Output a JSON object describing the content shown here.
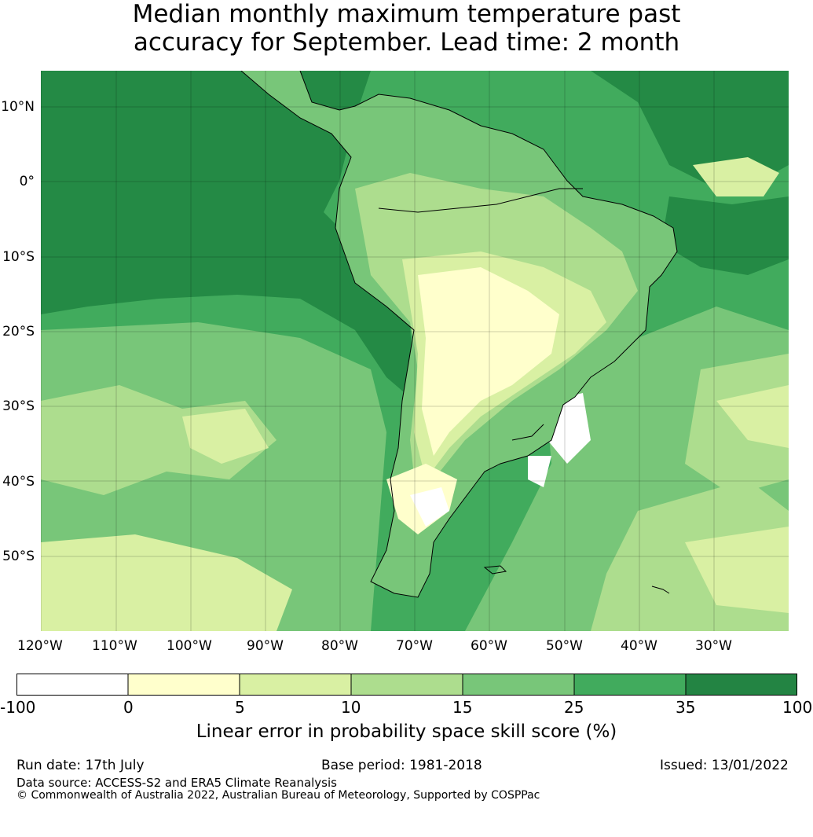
{
  "title": {
    "line1": "Median monthly maximum temperature past",
    "line2": "accuracy for September. Lead time: 2 month"
  },
  "map": {
    "lat_labels": [
      "10°N",
      "0°",
      "10°S",
      "20°S",
      "30°S",
      "40°S",
      "50°S"
    ],
    "lon_labels": [
      "120°W",
      "110°W",
      "100°W",
      "90°W",
      "80°W",
      "70°W",
      "60°W",
      "50°W",
      "40°W",
      "30°W"
    ],
    "colors": {
      "ocean_dark": "#248a45",
      "ocean_mid": "#41ab5d",
      "land_base": "#78c679",
      "light_green": "#addd8e",
      "pale": "#d9f0a3",
      "cream": "#ffffcc",
      "coast": "#000000"
    }
  },
  "colorbar": {
    "ticks": [
      "-100",
      "0",
      "5",
      "10",
      "15",
      "25",
      "35",
      "100"
    ],
    "colors": [
      "#ffffff",
      "#ffffcc",
      "#d9f0a3",
      "#addd8e",
      "#78c679",
      "#41ab5d",
      "#238443"
    ],
    "label": "Linear error in probability space skill score (%)"
  },
  "footer": {
    "run_date": "Run date: 17th July",
    "base_period": "Base period: 1981-2018",
    "issued": "Issued: 13/01/2022",
    "data_source": "Data source: ACCESS-S2 and ERA5 Climate Reanalysis",
    "copyright": "© Commonwealth of Australia 2022, Australian Bureau of Meteorology, Supported by COSPPac"
  }
}
